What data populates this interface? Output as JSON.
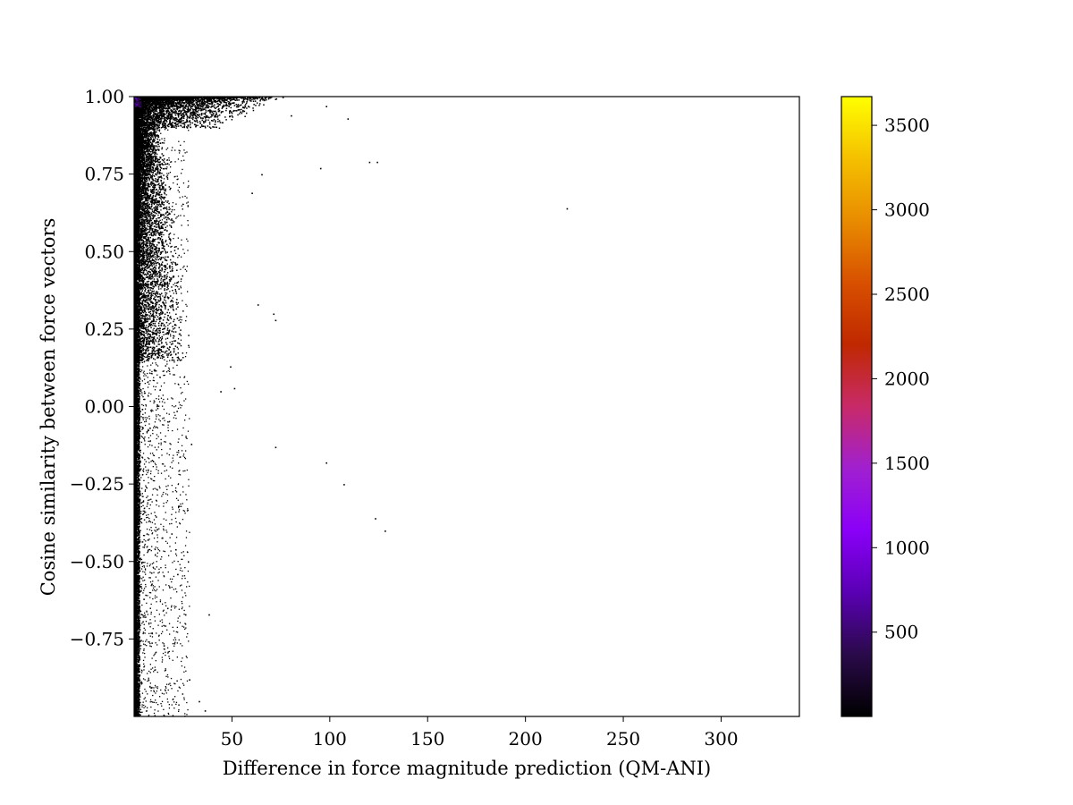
{
  "chart_data": {
    "type": "heatmap",
    "title": "",
    "xlabel": "Difference in force magnitude prediction (QM-ANI)",
    "ylabel": "Cosine similarity between force vectors",
    "xlim": [
      0,
      340
    ],
    "ylim": [
      -1.0,
      1.0
    ],
    "x_ticks": [
      50,
      100,
      150,
      200,
      250,
      300
    ],
    "x_tick_labels": [
      "50",
      "100",
      "150",
      "200",
      "250",
      "300"
    ],
    "y_ticks": [
      1.0,
      0.75,
      0.5,
      0.25,
      0.0,
      -0.25,
      -0.5,
      -0.75
    ],
    "y_tick_labels": [
      "1.00",
      "0.75",
      "0.50",
      "0.25",
      "0.00",
      "−0.25",
      "−0.50",
      "−0.75"
    ],
    "grid": false,
    "colorbar": {
      "colormap": "gnuplot",
      "range": [
        1,
        3670
      ],
      "ticks": [
        500,
        1000,
        1500,
        2000,
        2500,
        3000,
        3500
      ],
      "tick_labels": [
        "500",
        "1000",
        "1500",
        "2000",
        "2500",
        "3000",
        "3500"
      ],
      "stops": [
        "#000000",
        "#2a0a4a",
        "#5a00b4",
        "#8a00f8",
        "#a020d0",
        "#c82a68",
        "#c02800",
        "#d85000",
        "#e88c00",
        "#f5c000",
        "#ffff00"
      ]
    },
    "dense_cluster": {
      "x_range": [
        0,
        3
      ],
      "y_range": [
        0.97,
        1.0
      ],
      "count_level": 1500
    },
    "outlier_points": [
      [
        98,
        0.97
      ],
      [
        109,
        0.93
      ],
      [
        80,
        0.94
      ],
      [
        120,
        0.79
      ],
      [
        124,
        0.79
      ],
      [
        95,
        0.77
      ],
      [
        221,
        0.64
      ],
      [
        65,
        0.75
      ],
      [
        60,
        0.69
      ],
      [
        72,
        0.28
      ],
      [
        71,
        0.3
      ],
      [
        63,
        0.33
      ],
      [
        49,
        0.13
      ],
      [
        51,
        0.06
      ],
      [
        44,
        0.05
      ],
      [
        72,
        -0.13
      ],
      [
        98,
        -0.18
      ],
      [
        107,
        -0.25
      ],
      [
        123,
        -0.36
      ],
      [
        128,
        -0.4
      ],
      [
        38,
        -0.67
      ],
      [
        36,
        -0.98
      ],
      [
        33,
        -0.95
      ],
      [
        28,
        -0.88
      ],
      [
        26,
        -0.67
      ],
      [
        29,
        -0.12
      ],
      [
        21,
        -0.46
      ],
      [
        22,
        -0.54
      ],
      [
        15,
        -0.77
      ]
    ]
  }
}
